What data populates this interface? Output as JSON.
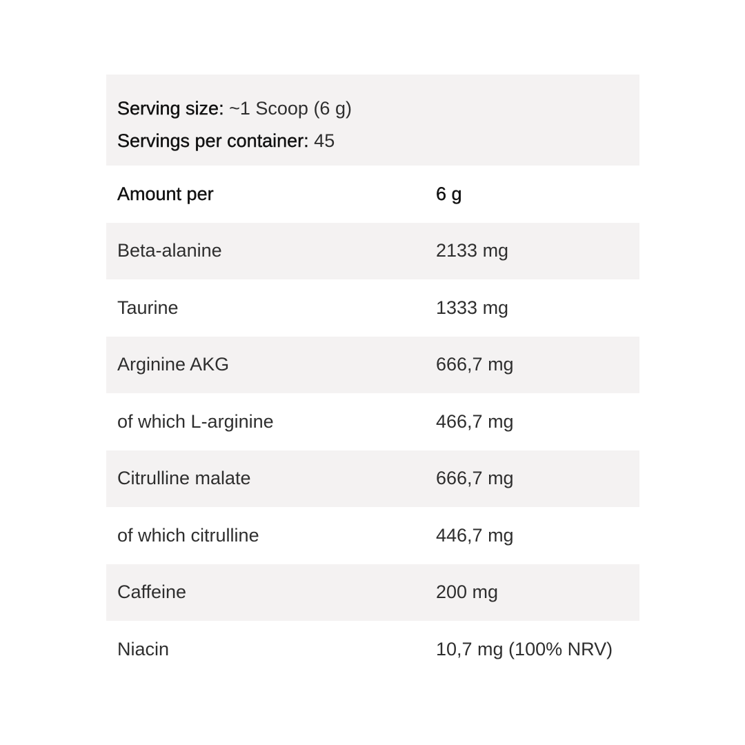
{
  "serving": {
    "size_label": "Serving size:",
    "size_value": "~1 Scoop (6 g)",
    "per_container_label": "Servings per container:",
    "per_container_value": "45"
  },
  "header": {
    "label": "Amount per",
    "value": "6 g"
  },
  "rows": [
    {
      "name": "Beta-alanine",
      "value": "2133 mg"
    },
    {
      "name": "Taurine",
      "value": "1333 mg"
    },
    {
      "name": "Arginine AKG",
      "value": "666,7 mg"
    },
    {
      "name": "of which L-arginine",
      "value": "466,7 mg"
    },
    {
      "name": "Citrulline malate",
      "value": "666,7 mg"
    },
    {
      "name": "of which citrulline",
      "value": "446,7 mg"
    },
    {
      "name": "Caffeine",
      "value": "200 mg"
    },
    {
      "name": "Niacin",
      "value": "10,7 mg (100% NRV)"
    }
  ]
}
